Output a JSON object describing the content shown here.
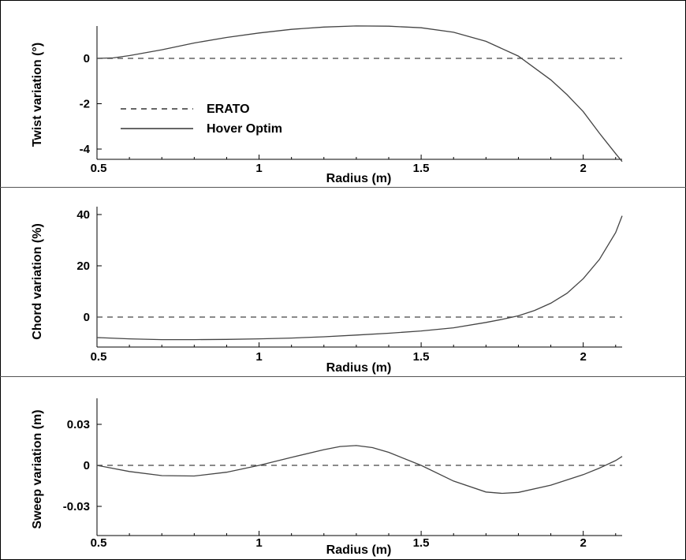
{
  "chart_data": [
    {
      "type": "line",
      "xlabel": "Radius (m)",
      "ylabel": "Twist variation (°)",
      "xlim": [
        0.5,
        2.12
      ],
      "ylim": [
        -4.5,
        1.3
      ],
      "xticks": [
        0.5,
        1,
        1.5,
        2
      ],
      "xtick_labels": [
        "0.5",
        "1",
        "1.5",
        "2"
      ],
      "yticks": [
        0,
        -2,
        -4
      ],
      "ytick_labels": [
        "0",
        "-2",
        "-4"
      ],
      "legend": {
        "position": "lower-left",
        "entries": [
          {
            "label": "ERATO",
            "style": "dashed"
          },
          {
            "label": "Hover Optim",
            "style": "solid"
          }
        ]
      },
      "series": [
        {
          "name": "ERATO",
          "style": "dashed",
          "x": [
            0.5,
            2.12
          ],
          "y": [
            0,
            0
          ]
        },
        {
          "name": "Hover Optim",
          "style": "solid",
          "x": [
            0.5,
            0.55,
            0.6,
            0.7,
            0.8,
            0.9,
            1.0,
            1.1,
            1.2,
            1.3,
            1.4,
            1.5,
            1.6,
            1.7,
            1.8,
            1.9,
            1.95,
            2.0,
            2.05,
            2.1,
            2.12
          ],
          "y": [
            0.0,
            0.02,
            0.12,
            0.38,
            0.68,
            0.92,
            1.12,
            1.28,
            1.38,
            1.43,
            1.42,
            1.35,
            1.15,
            0.75,
            0.1,
            -0.95,
            -1.6,
            -2.35,
            -3.3,
            -4.2,
            -4.55
          ]
        }
      ]
    },
    {
      "type": "line",
      "xlabel": "Radius (m)",
      "ylabel": "Chord variation (%)",
      "xlim": [
        0.5,
        2.12
      ],
      "ylim": [
        -11,
        42
      ],
      "xticks": [
        0.5,
        1,
        1.5,
        2
      ],
      "xtick_labels": [
        "0.5",
        "1",
        "1.5",
        "2"
      ],
      "yticks": [
        0,
        20,
        40
      ],
      "ytick_labels": [
        "0",
        "20",
        "40"
      ],
      "series": [
        {
          "name": "ERATO",
          "style": "dashed",
          "x": [
            0.5,
            2.12
          ],
          "y": [
            0,
            0
          ]
        },
        {
          "name": "Hover Optim",
          "style": "solid",
          "x": [
            0.5,
            0.6,
            0.7,
            0.8,
            0.9,
            1.0,
            1.1,
            1.2,
            1.3,
            1.4,
            1.5,
            1.6,
            1.7,
            1.75,
            1.8,
            1.85,
            1.9,
            1.95,
            2.0,
            2.05,
            2.1,
            2.12
          ],
          "y": [
            -8.0,
            -8.5,
            -8.8,
            -8.8,
            -8.7,
            -8.5,
            -8.2,
            -7.7,
            -7.0,
            -6.3,
            -5.4,
            -4.2,
            -2.1,
            -0.9,
            0.5,
            2.6,
            5.4,
            9.3,
            15.0,
            22.5,
            33.0,
            39.5
          ]
        }
      ]
    },
    {
      "type": "line",
      "xlabel": "Radius (m)",
      "ylabel": "Sweep variation (m)",
      "xlim": [
        0.5,
        2.12
      ],
      "ylim": [
        -0.06,
        0.05
      ],
      "xticks": [
        0.5,
        1,
        1.5,
        2
      ],
      "xtick_labels": [
        "0.5",
        "1",
        "1.5",
        "2"
      ],
      "yticks": [
        0.03,
        0,
        -0.03
      ],
      "ytick_labels": [
        "0.03",
        "0",
        "-0.03"
      ],
      "series": [
        {
          "name": "ERATO",
          "style": "dashed",
          "x": [
            0.5,
            2.12
          ],
          "y": [
            0,
            0
          ]
        },
        {
          "name": "Hover Optim",
          "style": "solid",
          "x": [
            0.5,
            0.6,
            0.7,
            0.8,
            0.9,
            1.0,
            1.1,
            1.2,
            1.25,
            1.3,
            1.35,
            1.4,
            1.5,
            1.6,
            1.7,
            1.75,
            1.8,
            1.9,
            2.0,
            2.05,
            2.1,
            2.12
          ],
          "y": [
            0.0,
            -0.0045,
            -0.0075,
            -0.0078,
            -0.005,
            0.0,
            0.0058,
            0.0115,
            0.0138,
            0.0145,
            0.013,
            0.0095,
            0.0,
            -0.0115,
            -0.0195,
            -0.0205,
            -0.0198,
            -0.0145,
            -0.0068,
            -0.002,
            0.0035,
            0.0065
          ]
        }
      ]
    }
  ]
}
